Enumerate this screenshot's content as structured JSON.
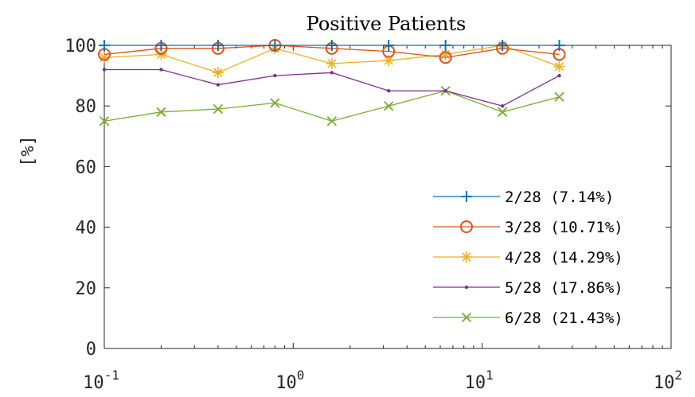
{
  "chart_data": {
    "type": "line",
    "title": "Positive Patients",
    "xlabel": "",
    "ylabel": "[%]",
    "xscale": "log",
    "xlim": [
      0.1,
      100
    ],
    "ylim": [
      0,
      100
    ],
    "y_ticks": [
      0,
      20,
      40,
      60,
      80,
      100
    ],
    "x_ticks": [
      {
        "base": "10",
        "exp": "-1",
        "value": 0.1
      },
      {
        "base": "10",
        "exp": "0",
        "value": 1
      },
      {
        "base": "10",
        "exp": "1",
        "value": 10
      },
      {
        "base": "10",
        "exp": "2",
        "value": 100
      }
    ],
    "grid": false,
    "legend_position": "bottom-right",
    "x": [
      0.1,
      0.2,
      0.4,
      0.8,
      1.6,
      3.2,
      6.4,
      12.8,
      25.6
    ],
    "series": [
      {
        "name": "2/28 (7.14%)",
        "color": "#0072BD",
        "marker": "plus",
        "values": [
          100,
          100,
          100,
          100,
          100,
          100,
          100,
          100,
          100
        ]
      },
      {
        "name": "3/28 (10.71%)",
        "color": "#D95319",
        "marker": "circle",
        "values": [
          97,
          99,
          99,
          100,
          99,
          98,
          96,
          99,
          97
        ]
      },
      {
        "name": "4/28 (14.29%)",
        "color": "#EDB120",
        "marker": "asterisk",
        "values": [
          96,
          97,
          91,
          99,
          94,
          95,
          97,
          100,
          93
        ]
      },
      {
        "name": "5/28 (17.86%)",
        "color": "#7E2F8E",
        "marker": "dot",
        "values": [
          92,
          92,
          87,
          90,
          91,
          85,
          85,
          80,
          90
        ]
      },
      {
        "name": "6/28 (21.43%)",
        "color": "#77AC30",
        "marker": "x",
        "values": [
          75,
          78,
          79,
          81,
          75,
          80,
          85,
          78,
          83
        ]
      }
    ]
  }
}
